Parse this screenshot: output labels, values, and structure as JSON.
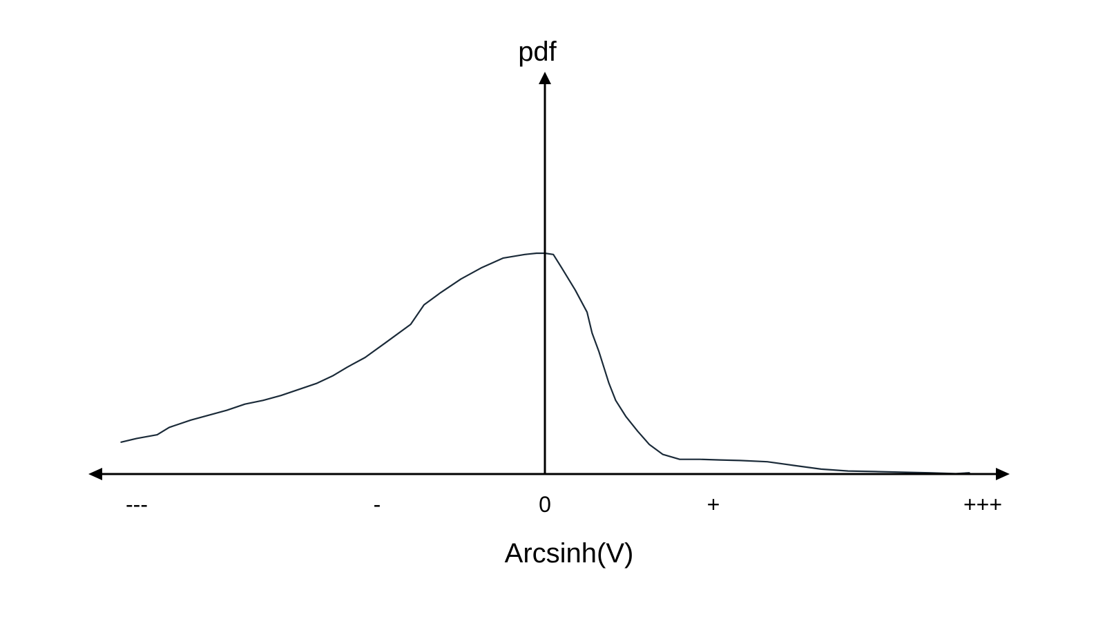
{
  "chart_data": {
    "type": "line",
    "title": "",
    "xlabel": "Arcsinh(V)",
    "ylabel": "pdf",
    "grid": false,
    "legend": "none",
    "x_ticks": [
      {
        "label": "---",
        "value": -3
      },
      {
        "label": "-",
        "value": -1
      },
      {
        "label": "0",
        "value": 0
      },
      {
        "label": "+",
        "value": 1
      },
      {
        "label": "+++",
        "value": 3
      }
    ],
    "xlim": [
      -3,
      3
    ],
    "ylim": [
      0,
      1.8
    ],
    "series": [
      {
        "line_color": "#1a2a38",
        "x": [
          -3.13,
          -3.0,
          -2.83,
          -2.73,
          -2.55,
          -2.4,
          -2.25,
          -2.1,
          -1.95,
          -1.8,
          -1.65,
          -1.5,
          -1.37,
          -1.25,
          -1.1,
          -0.95,
          -0.8,
          -0.72,
          -0.62,
          -0.5,
          -0.38,
          -0.25,
          -0.12,
          -0.05,
          0.0,
          0.05,
          0.1,
          0.18,
          0.25,
          0.28,
          0.32,
          0.35,
          0.38,
          0.42,
          0.48,
          0.55,
          0.62,
          0.7,
          0.8,
          0.92,
          1.05,
          1.2,
          1.4,
          1.6,
          1.8,
          2.0,
          2.2,
          2.4,
          2.6,
          2.8,
          2.9
        ],
        "y": [
          0.26,
          0.29,
          0.32,
          0.38,
          0.44,
          0.48,
          0.52,
          0.57,
          0.6,
          0.64,
          0.69,
          0.74,
          0.8,
          0.87,
          0.95,
          1.07,
          1.22,
          1.38,
          1.48,
          1.59,
          1.68,
          1.76,
          1.79,
          1.8,
          1.8,
          1.79,
          1.68,
          1.5,
          1.32,
          1.15,
          1.0,
          0.87,
          0.74,
          0.6,
          0.47,
          0.35,
          0.24,
          0.16,
          0.12,
          0.12,
          0.115,
          0.11,
          0.1,
          0.07,
          0.04,
          0.025,
          0.02,
          0.015,
          0.01,
          0.003,
          0.01
        ]
      }
    ]
  }
}
